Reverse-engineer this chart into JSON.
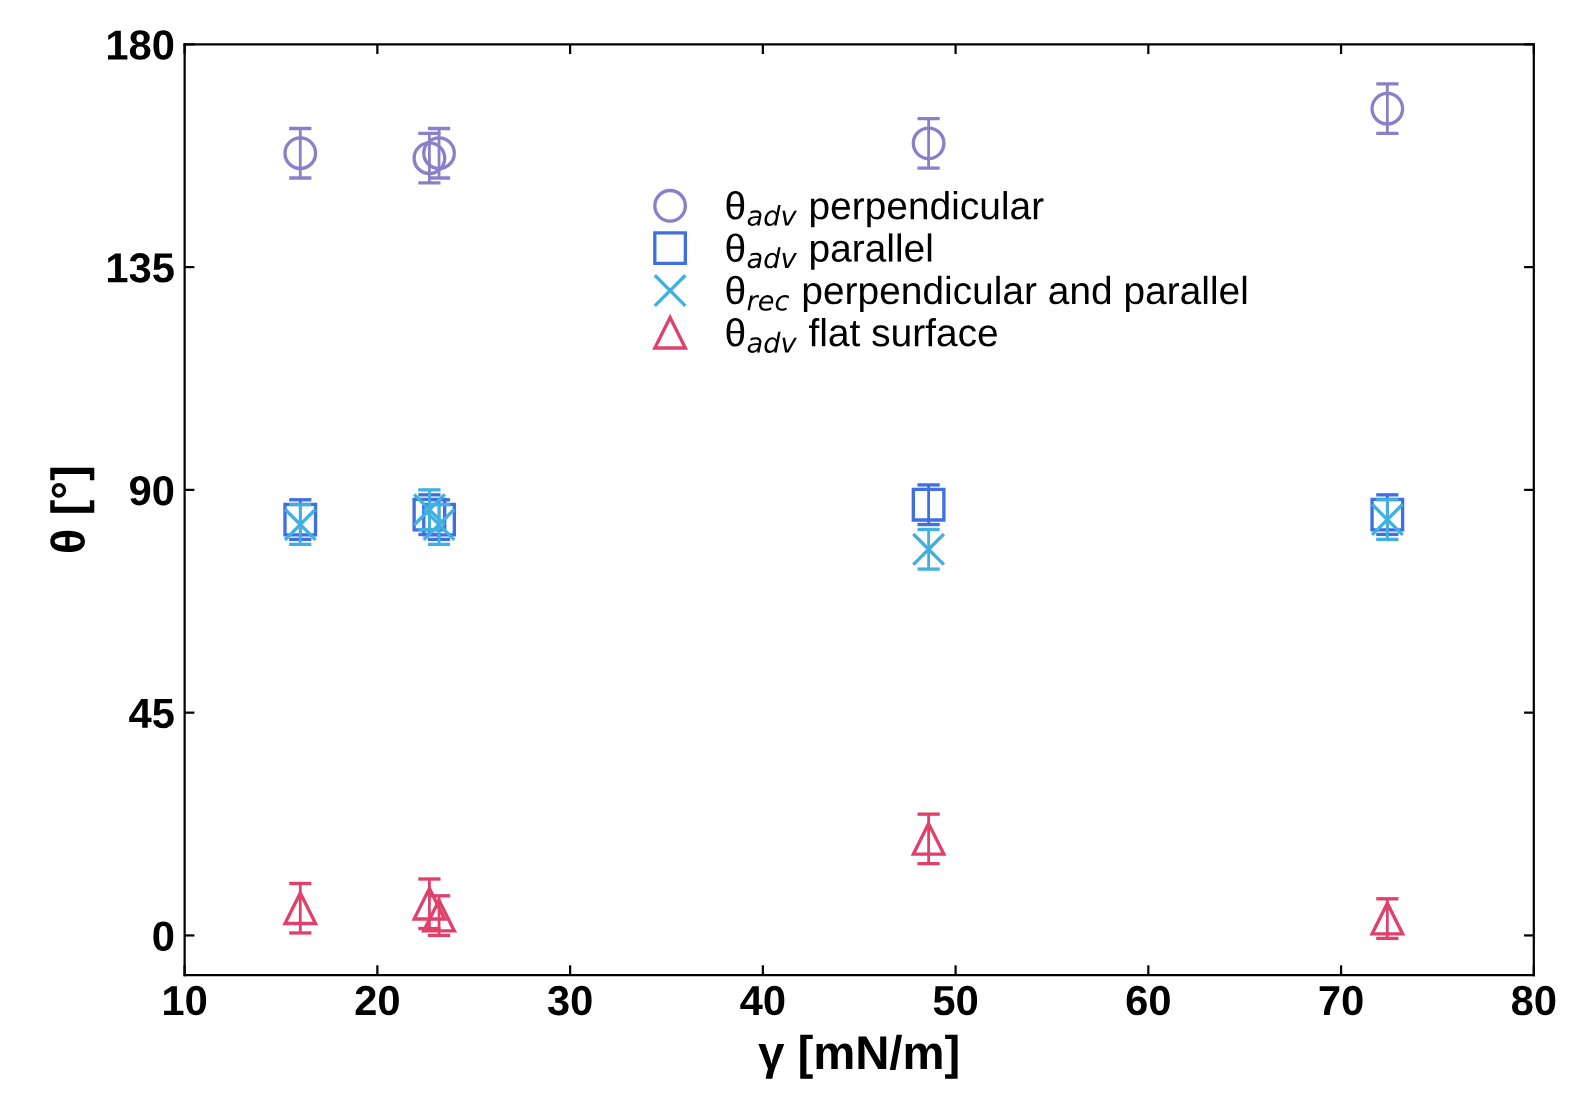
{
  "chart_data": {
    "type": "scatter",
    "xlabel": "γ [mN/m]",
    "ylabel": "θ [°]",
    "xlim": [
      10,
      80
    ],
    "xticks": [
      10,
      20,
      30,
      40,
      50,
      60,
      70,
      80
    ],
    "ylim": [
      -8,
      180
    ],
    "yticks": [
      0,
      45,
      90,
      135,
      180
    ],
    "grid": false,
    "legend": "top",
    "series": [
      {
        "name": "θ$_{adv}$ perpendicular",
        "color": "#8a7fc8",
        "marker": "circle",
        "x": [
          16,
          22.7,
          23.2,
          48.6,
          72.4
        ],
        "values": [
          158,
          157,
          158,
          160,
          167
        ],
        "errors": [
          5,
          5,
          5,
          5,
          5
        ]
      },
      {
        "name": "θ$_{adv}$ parallel",
        "color": "#3f6fe0",
        "marker": "square",
        "x": [
          16,
          22.7,
          23.2,
          48.6,
          72.4
        ],
        "values": [
          84,
          85,
          84,
          87,
          85
        ],
        "errors": [
          4,
          4,
          4,
          4,
          4
        ]
      },
      {
        "name": "θ$_{rec}$ perpendicular and parallel",
        "color": "#40b0e0",
        "marker": "cross",
        "x": [
          16,
          22.7,
          23.2,
          48.6,
          72.4
        ],
        "values": [
          83,
          86,
          83,
          78,
          84
        ],
        "errors": [
          4,
          4,
          4,
          4,
          4
        ]
      },
      {
        "name": "θ$_{adv}$ flat surface",
        "color": "#e0406a",
        "marker": "triangle",
        "x": [
          16,
          22.7,
          23.2,
          48.6,
          72.4
        ],
        "values": [
          5.5,
          6.4,
          4,
          19.5,
          3.4
        ],
        "errors": [
          5,
          5,
          4,
          5,
          4
        ]
      }
    ]
  }
}
